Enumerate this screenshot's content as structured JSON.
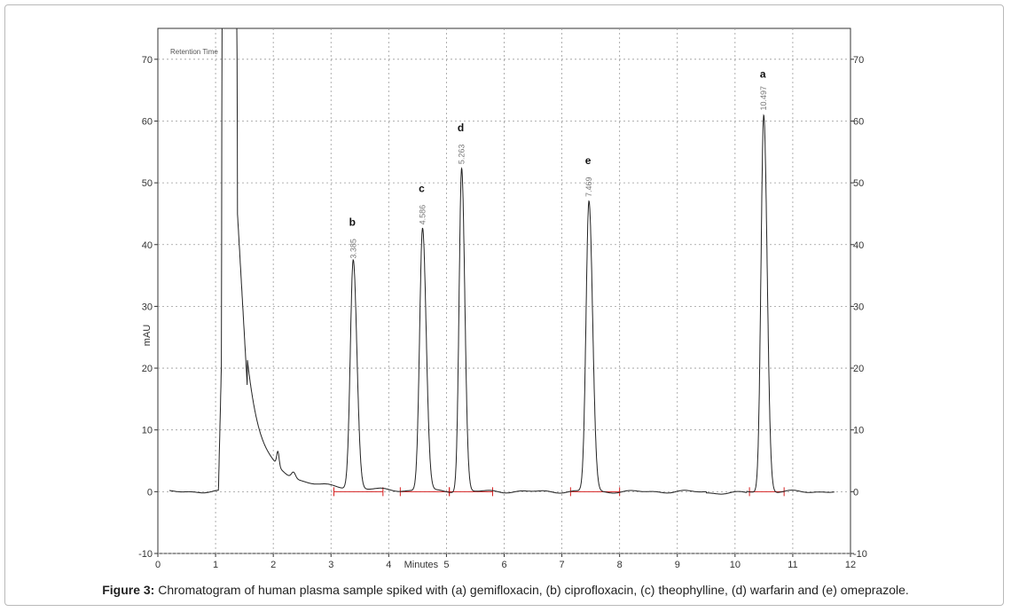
{
  "caption": {
    "label": "Figure 3:",
    "text": "Chromatogram of human plasma sample spiked with (a) gemifloxacin, (b) ciprofloxacin, (c) theophylline, (d) warfarin and (e) omeprazole."
  },
  "chart_data": {
    "type": "line",
    "legend_label": "Retention Time",
    "xlabel": "Minutes",
    "ylabel": "mAU",
    "xlim": [
      0,
      12
    ],
    "ylim": [
      -10,
      75
    ],
    "x_ticks": [
      0,
      1,
      2,
      3,
      4,
      5,
      6,
      7,
      8,
      9,
      10,
      11,
      12
    ],
    "y_ticks": [
      -10,
      0,
      10,
      20,
      30,
      40,
      50,
      60,
      70
    ],
    "grid": "dotted",
    "peaks": [
      {
        "letter": "b",
        "retention_time": "3.385",
        "x": 3.385,
        "height": 37
      },
      {
        "letter": "c",
        "retention_time": "4.586",
        "x": 4.586,
        "height": 42.5
      },
      {
        "letter": "d",
        "retention_time": "5.263",
        "x": 5.263,
        "height": 52.3
      },
      {
        "letter": "e",
        "retention_time": "7.469",
        "x": 7.469,
        "height": 47
      },
      {
        "letter": "a",
        "retention_time": "10.497",
        "x": 10.497,
        "height": 61
      }
    ],
    "baseline_segments": [
      [
        3.05,
        3.9
      ],
      [
        4.2,
        5.05
      ],
      [
        5.05,
        5.8
      ],
      [
        7.15,
        8.0
      ],
      [
        10.25,
        10.85
      ]
    ],
    "colors": {
      "trace": "#222222",
      "baseline": "#d62020",
      "grid": "#9a9a9a"
    }
  }
}
